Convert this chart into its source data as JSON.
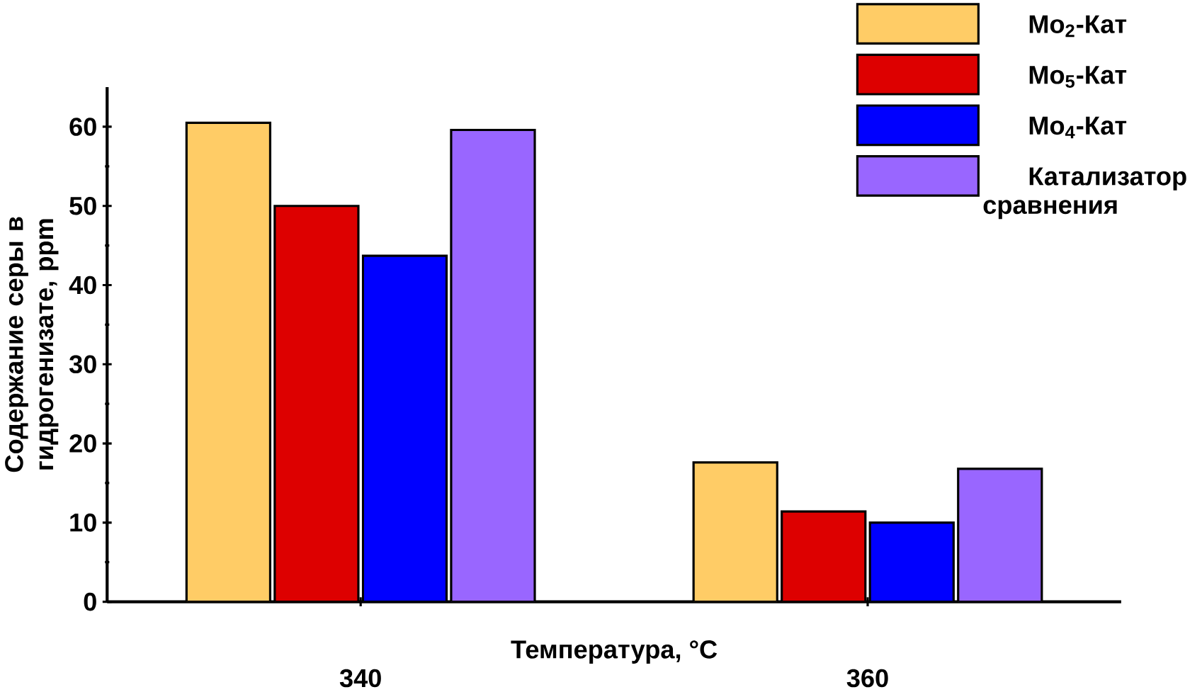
{
  "chart_data": {
    "type": "bar",
    "xlabel": "Температура, °C",
    "ylabel": "Содержание серы в гидрогенизате, ppm",
    "categories": [
      "340",
      "360"
    ],
    "series": [
      {
        "name": "Mo$_{2}$-Кат",
        "color": "#ffcc66",
        "values": [
          60.5,
          17.6
        ]
      },
      {
        "name": "Mo$_{5}$-Кат",
        "color": "#dd0000",
        "values": [
          50,
          11.4
        ]
      },
      {
        "name": "Mo$_{4}$-Кат",
        "color": "#0000ff",
        "values": [
          43.7,
          10
        ]
      },
      {
        "name": "Катализатор сравнения",
        "color": "#9966ff",
        "values": [
          59.6,
          16.8
        ]
      }
    ],
    "ylim": [
      0,
      65
    ],
    "yticks": [
      0,
      10,
      20,
      30,
      40,
      50,
      60
    ],
    "legend": "top right",
    "grid": false
  }
}
